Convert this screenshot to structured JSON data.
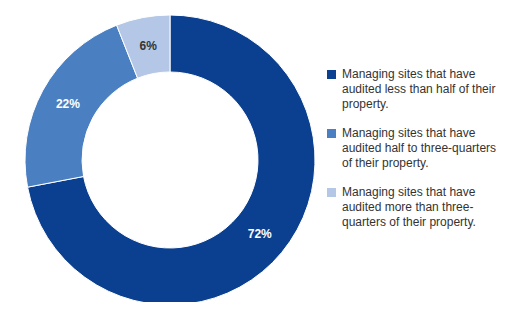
{
  "chart_data": {
    "type": "pie",
    "categories": [
      "Managing sites that have audited less than half of their property.",
      "Managing sites that have audited half to three-quarters of their property.",
      "Managing sites that have audited more than three-quarters of their property."
    ],
    "values": [
      72,
      22,
      6
    ],
    "value_labels": [
      "72%",
      "22%",
      "6%"
    ],
    "colors": [
      "#0b3f8f",
      "#4a80c2",
      "#b4c7e7"
    ],
    "data_labels": true,
    "legend": "right"
  }
}
